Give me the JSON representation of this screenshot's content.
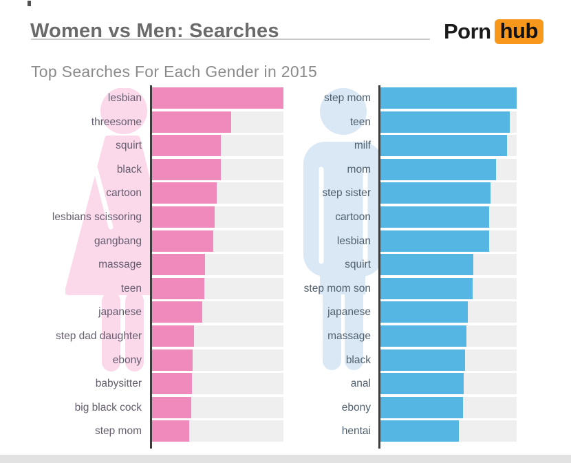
{
  "header": {
    "title": "Women vs Men: Searches",
    "subtitle": "Top Searches For Each Gender in 2015",
    "logo": {
      "part1": "Porn",
      "part2": "hub"
    }
  },
  "colors": {
    "logo_orange": "#f7981d",
    "title_gray": "#6a6a6a",
    "subtitle_gray": "#8b8b8b",
    "track_gray": "#efefef",
    "axis_dark": "#3c3c3c",
    "footer_band": "#e2e2e2"
  },
  "chart_data": [
    {
      "type": "bar",
      "orientation": "horizontal",
      "series_name": "women",
      "icon": "woman-silhouette-icon",
      "bar_color": "#f08abd",
      "silhouette_color": "#fbd9eb",
      "label_color": "#655d6d",
      "value_scale": "percent of longest bar (no numeric axis shown)",
      "xlim": [
        0,
        100
      ],
      "grid": false,
      "legend": false,
      "categories": [
        "lesbian",
        "threesome",
        "squirt",
        "black",
        "cartoon",
        "lesbians scissoring",
        "gangbang",
        "massage",
        "teen",
        "japanese",
        "step dad daughter",
        "ebony",
        "babysitter",
        "big black cock",
        "step mom"
      ],
      "values": [
        100,
        61,
        53,
        53,
        50,
        48.5,
        47.5,
        41,
        40.5,
        39,
        33,
        32,
        31.5,
        31,
        29.5
      ]
    },
    {
      "type": "bar",
      "orientation": "horizontal",
      "series_name": "men",
      "icon": "man-silhouette-icon",
      "bar_color": "#55b6e4",
      "silhouette_color": "#d9e8f4",
      "label_color": "#50606e",
      "value_scale": "percent of longest bar (no numeric axis shown)",
      "xlim": [
        0,
        100
      ],
      "grid": false,
      "legend": false,
      "categories": [
        "step mom",
        "teen",
        "milf",
        "mom",
        "step sister",
        "cartoon",
        "lesbian",
        "squirt",
        "step mom son",
        "japanese",
        "massage",
        "black",
        "anal",
        "ebony",
        "hentai"
      ],
      "values": [
        100,
        95,
        93,
        85,
        81,
        80,
        80,
        68.5,
        68,
        64.5,
        63.5,
        62.5,
        61.5,
        61,
        58
      ]
    }
  ]
}
